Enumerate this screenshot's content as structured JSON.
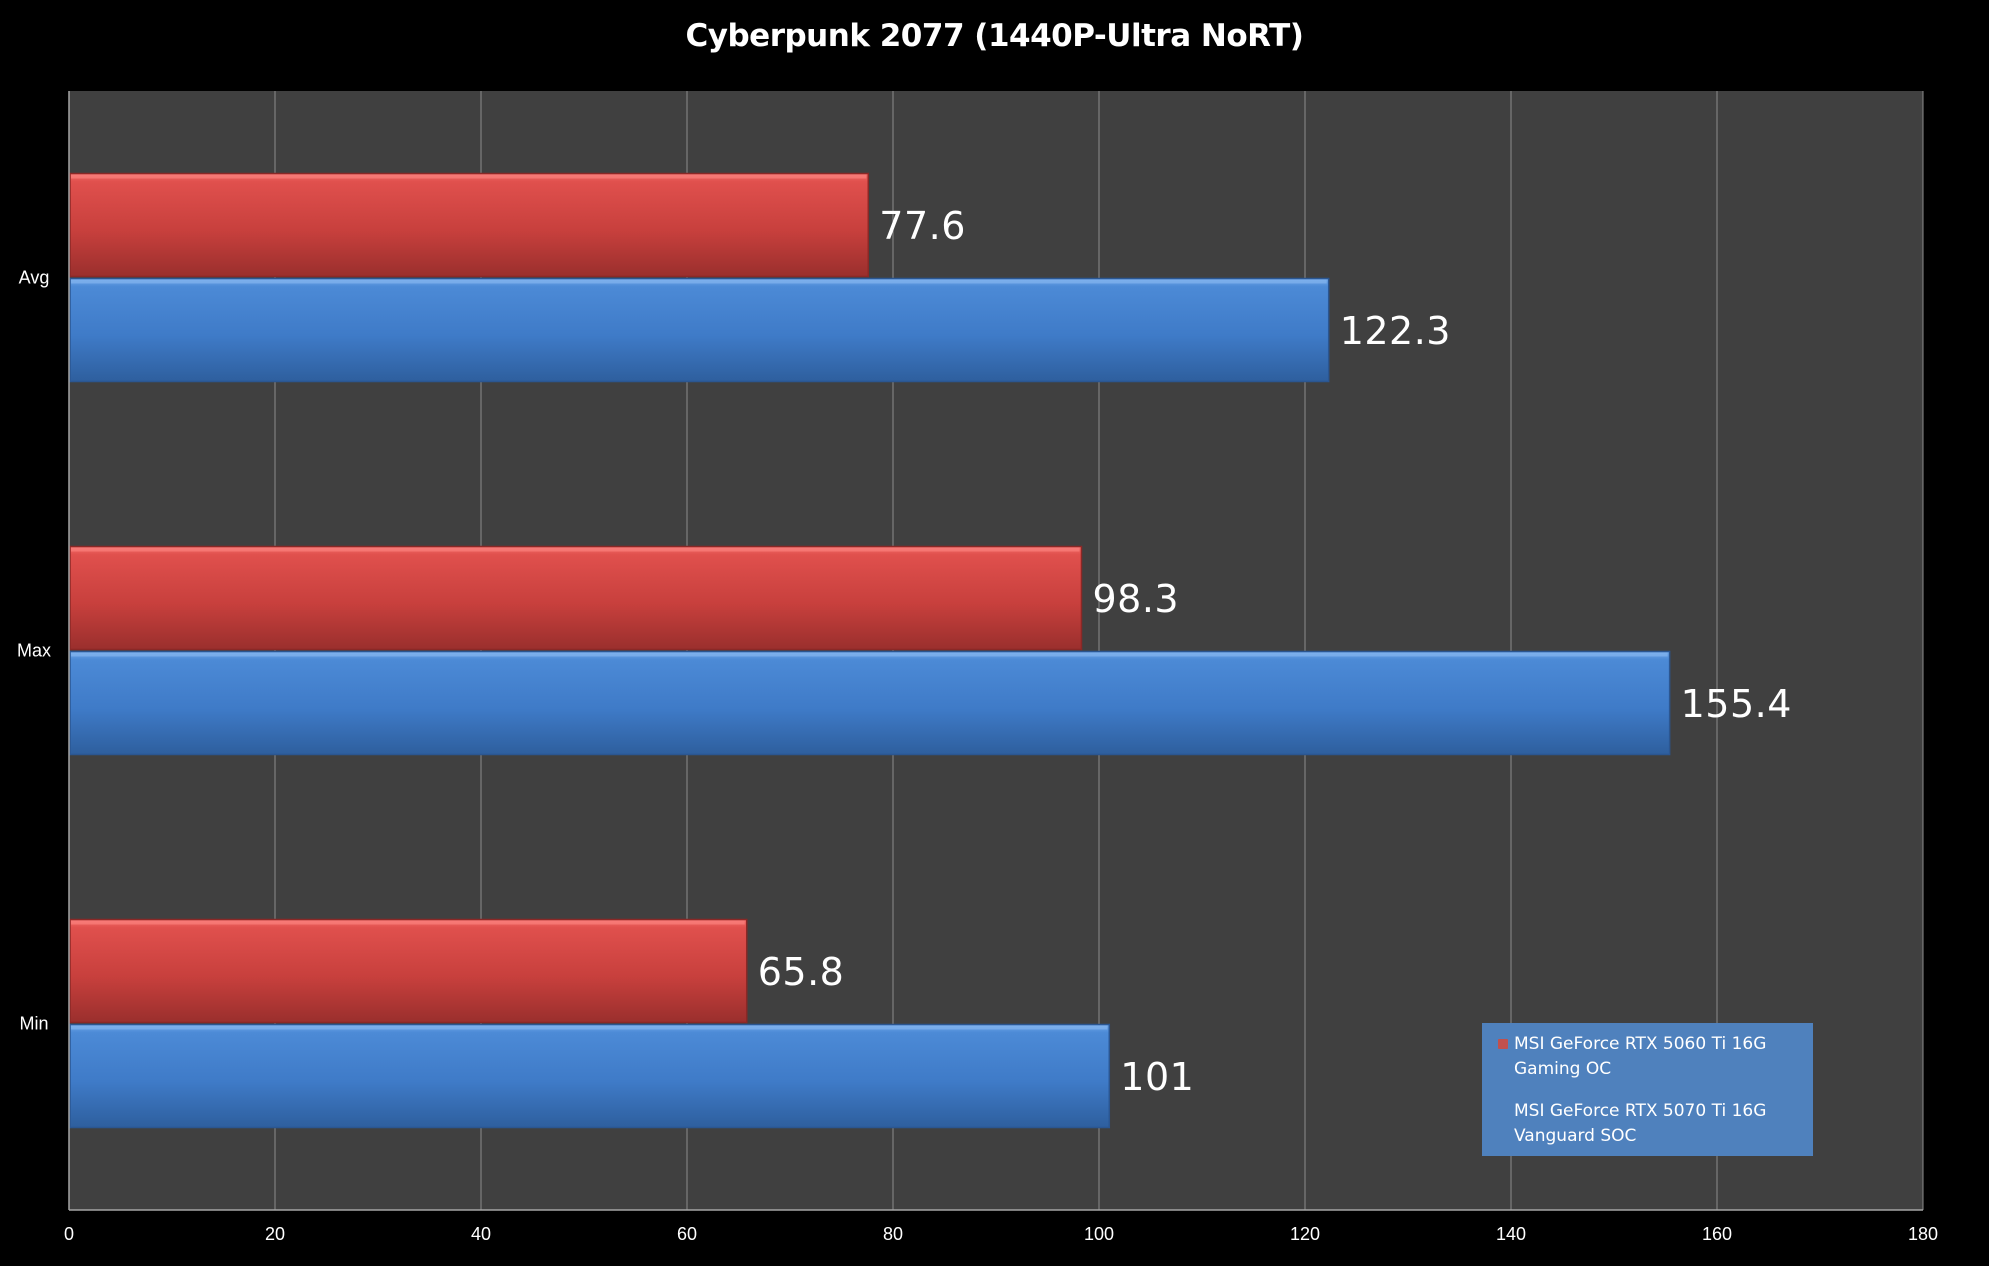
{
  "chart_data": {
    "type": "bar",
    "orientation": "horizontal",
    "title": "Cyberpunk 2077 (1440P-Ultra NoRT)",
    "categories": [
      "Avg",
      "Max",
      "Min"
    ],
    "series": [
      {
        "name": "MSI GeForce RTX 5060 Ti 16G Gaming OC",
        "color": "#c0504d",
        "values": [
          77.6,
          98.3,
          65.8
        ],
        "labels": [
          "77.6",
          "98.3",
          "65.8"
        ]
      },
      {
        "name": "MSI GeForce RTX 5070 Ti 16G Vanguard SOC",
        "color": "#4f81bd",
        "values": [
          122.3,
          155.4,
          101
        ],
        "labels": [
          "122.3",
          "155.4",
          "101"
        ]
      }
    ],
    "xlim": [
      0,
      180
    ],
    "xticks": [
      0,
      20,
      40,
      60,
      80,
      100,
      120,
      140,
      160,
      180
    ],
    "xtick_labels": [
      "0",
      "20",
      "40",
      "60",
      "80",
      "100",
      "120",
      "140",
      "160",
      "180"
    ],
    "xlabel": "",
    "ylabel": "",
    "grid": true,
    "legend_position": "bottom-right",
    "colors": {
      "background": "#000000",
      "plot_area": "#404040",
      "gridline": "#8c8c8c"
    }
  }
}
